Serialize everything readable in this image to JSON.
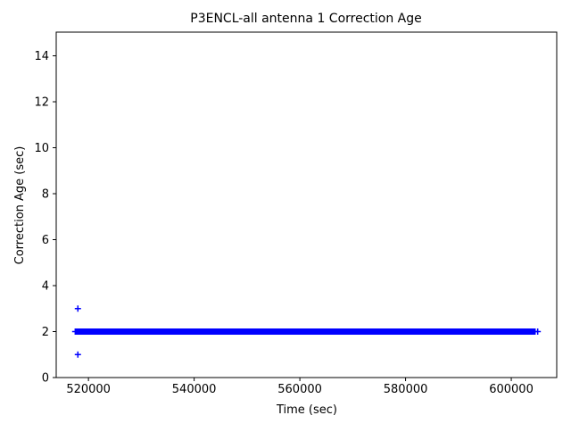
{
  "figure": {
    "title": "P3ENCL-all antenna 1 Correction Age",
    "xlabel": "Time (sec)",
    "ylabel": "Correction Age (sec)"
  },
  "chart_data": {
    "type": "scatter",
    "title": "P3ENCL-all antenna 1 Correction Age",
    "xlabel": "Time (sec)",
    "ylabel": "Correction Age (sec)",
    "xlim": [
      513900,
      608600
    ],
    "ylim": [
      0,
      15.03
    ],
    "xticks": [
      520000,
      540000,
      560000,
      580000,
      600000
    ],
    "yticks": [
      0,
      2,
      4,
      6,
      8,
      10,
      12,
      14
    ],
    "grid": false,
    "legend": false,
    "marker": "+",
    "marker_color": "#0000ff",
    "background_color": "#ffffff",
    "spine_color": "#000000",
    "text_color": "#000000",
    "series": [
      {
        "name": "antenna-1-correction-age",
        "dense_band": {
          "y": 2,
          "x_start": 517500,
          "x_end": 604500,
          "note": "continuous dense run of '+' markers at y=2"
        },
        "points": [
          {
            "x": 518000,
            "y": 3
          },
          {
            "x": 518000,
            "y": 1
          },
          {
            "x": 605000,
            "y": 2
          }
        ]
      }
    ]
  }
}
